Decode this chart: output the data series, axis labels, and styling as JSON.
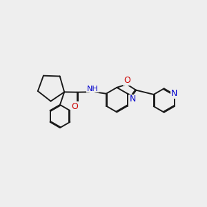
{
  "bg_color": "#eeeeee",
  "bond_color": "#1a1a1a",
  "bond_width": 1.4,
  "atom_colors": {
    "N": "#0000cc",
    "O": "#cc0000",
    "H": "#4a9090",
    "C": "#1a1a1a"
  },
  "font_size": 8.5,
  "xlim": [
    0,
    10
  ],
  "ylim": [
    0,
    10
  ]
}
